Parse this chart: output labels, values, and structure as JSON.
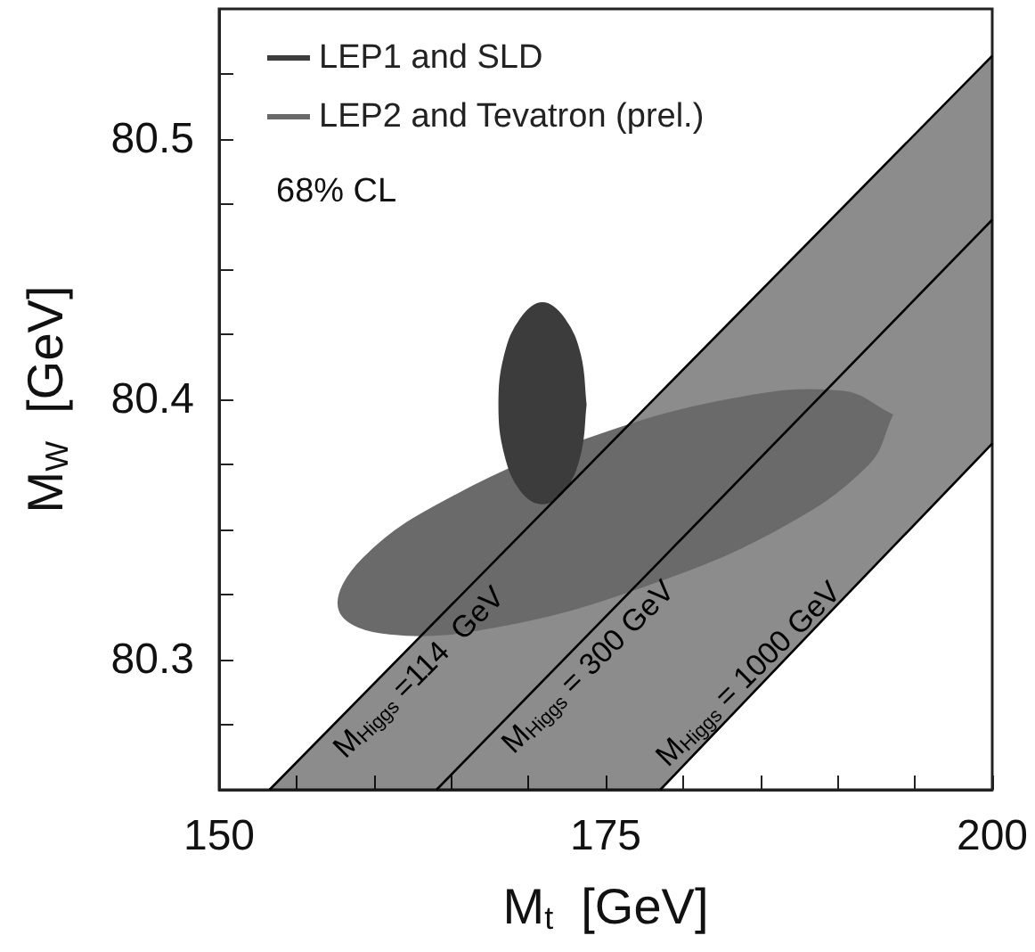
{
  "chart_data": {
    "type": "line",
    "xlabel": "M$_{t}$  [GeV]",
    "ylabel": "M$_{W}$  [GeV]",
    "xlim": [
      150,
      200
    ],
    "xticks": [
      150,
      {
        "value": 155,
        "label": null
      },
      {
        "value": 160,
        "label": null
      },
      {
        "value": 165,
        "label": null
      },
      {
        "value": 170,
        "label": null
      },
      175,
      {
        "value": 180,
        "label": null
      },
      {
        "value": 185,
        "label": null
      },
      {
        "value": 190,
        "label": null
      },
      {
        "value": 195,
        "label": null
      },
      200
    ],
    "ylim": [
      80.25,
      80.55
    ],
    "yticks": [
      {
        "value": 80.275,
        "label": null
      },
      80.3,
      {
        "value": 80.325,
        "label": null
      },
      {
        "value": 80.35,
        "label": null
      },
      {
        "value": 80.375,
        "label": null
      },
      80.4,
      {
        "value": 80.425,
        "label": null
      },
      {
        "value": 80.45,
        "label": null
      },
      {
        "value": 80.475,
        "label": null
      },
      80.5,
      {
        "value": 80.525,
        "label": null
      }
    ],
    "grid": false,
    "legend": "top left",
    "marker": "none",
    "line_style": "solid",
    "series": [
      {
        "color": "#000000",
        "x": [
          153.26,
          178.53,
          200
        ],
        "values": [
          80.25,
          80.4025,
          80.532
        ]
      },
      {
        "color": "#000000",
        "x": [
          153.26,
          164.06,
          178.53,
          200
        ],
        "values": [
          null,
          80.25,
          80.338,
          80.469
        ],
        "lower": [
          80.25,
          80.25,
          80.25,
          80.383
        ],
        "upper": [
          80.25,
          80.315,
          80.4025,
          80.532
        ]
      },
      {
        "color": "#000000",
        "x": [
          178.53,
          189,
          200
        ],
        "values": [
          80.25,
          80.315,
          80.383
        ]
      },
      {
        "type": "area",
        "name": "LEP2 and Tevatron (prel.)",
        "color": "#6a6a6a",
        "x": [
          193.52,
          191.96,
          186.04,
          177.33,
          168.18,
          161.02,
          157.79,
          159.35,
          165.27,
          173.98,
          183.14,
          190.29,
          193.52
        ],
        "values": [
          80.394,
          80.375,
          80.35,
          80.328,
          80.313,
          80.31,
          80.319,
          80.339,
          80.363,
          80.385,
          80.4,
          80.403,
          80.394
        ]
      },
      {
        "type": "area",
        "name": "LEP1 and SLD",
        "color": "#3c3c3c",
        "x": [
          173.71,
          173.34,
          172.31,
          170.91,
          169.52,
          168.49,
          168.12,
          168.49,
          169.52,
          170.91,
          172.31,
          173.34,
          173.71
        ],
        "values": [
          80.398,
          80.417,
          80.431,
          80.437,
          80.431,
          80.417,
          80.398,
          80.379,
          80.365,
          80.36,
          80.365,
          80.379,
          80.398
        ]
      }
    ],
    "annotations": [
      "68% CL",
      "M$_{Higgs}$ =114  GeV",
      "M$_{Higgs}$ = 300 GeV",
      "M$_{Higgs}$ = 1000 GeV"
    ]
  }
}
